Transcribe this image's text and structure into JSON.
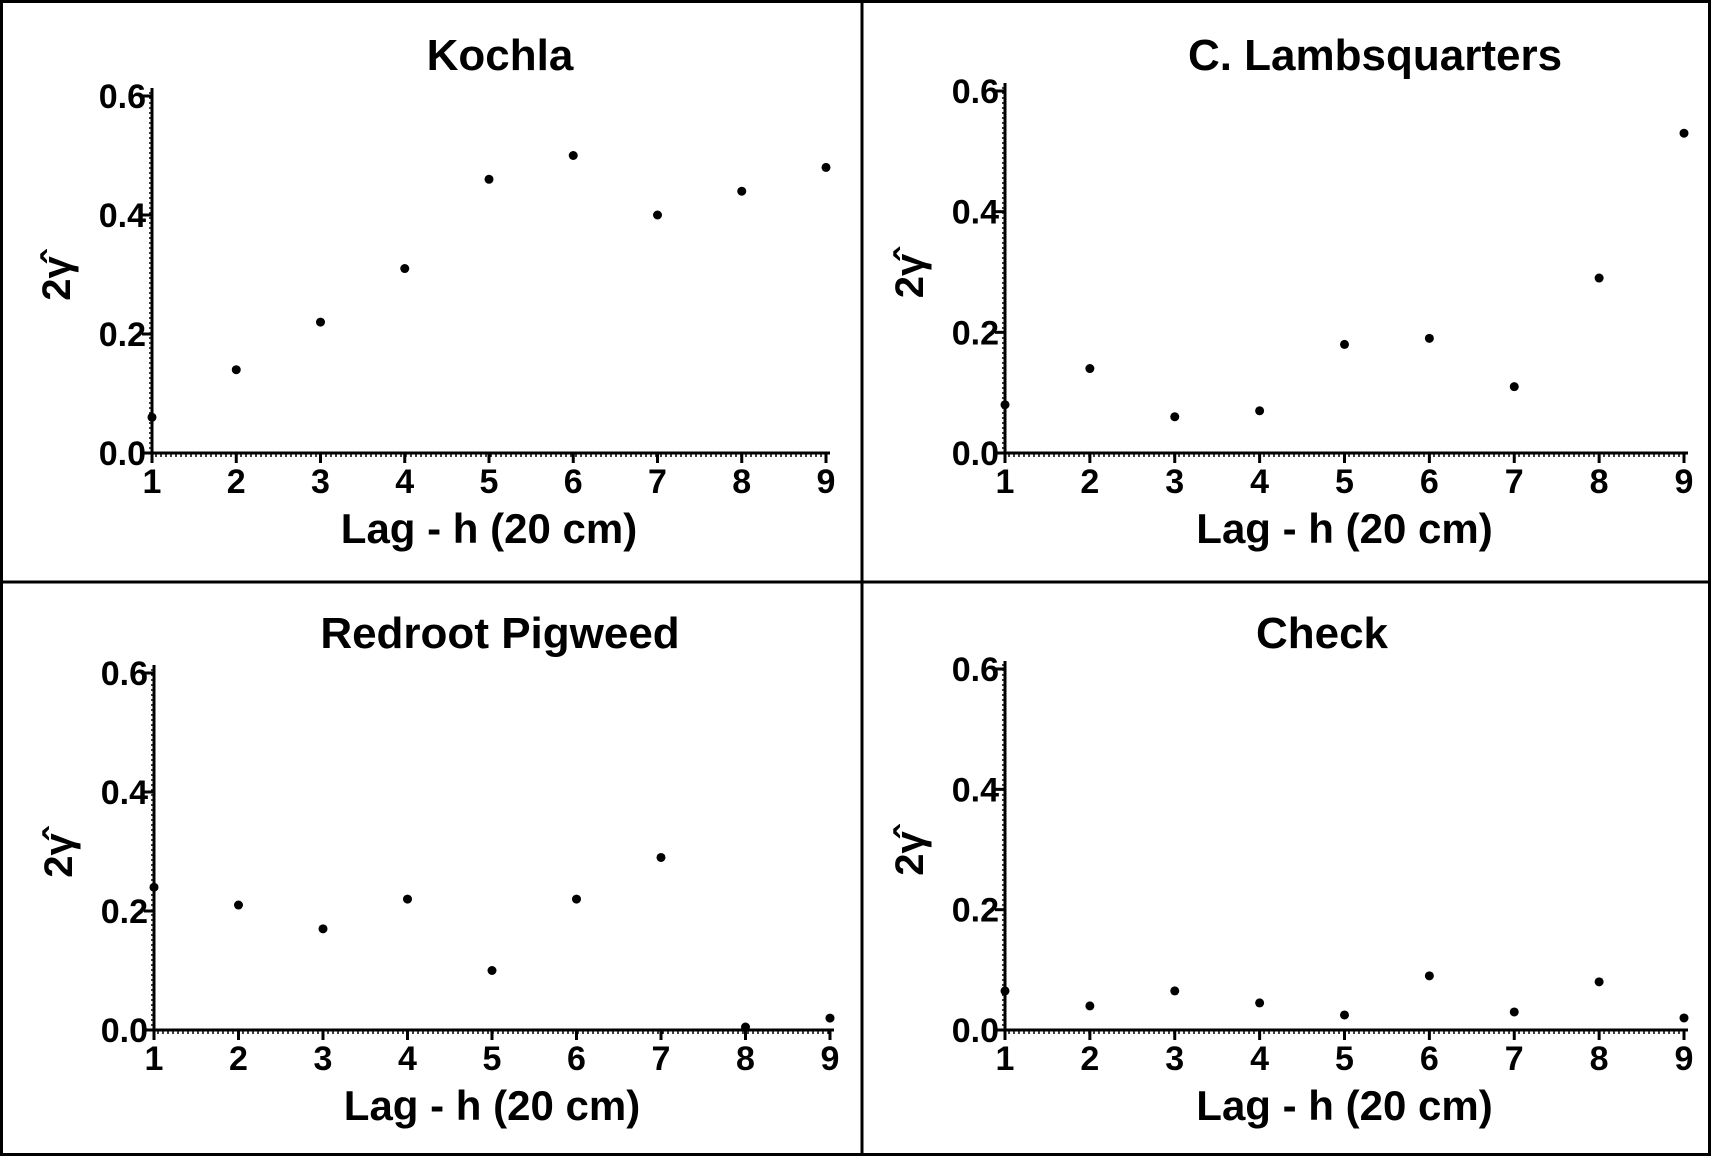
{
  "chart_data": [
    {
      "type": "scatter",
      "title": "Kochla",
      "xlabel": "Lag - h (20 cm)",
      "ylabel": "2γ̂",
      "x": [
        1,
        2,
        3,
        4,
        5,
        6,
        7,
        8,
        9
      ],
      "y": [
        0.06,
        0.14,
        0.22,
        0.31,
        0.46,
        0.5,
        0.4,
        0.44,
        0.48
      ],
      "xticks": [
        "1",
        "2",
        "3",
        "4",
        "5",
        "6",
        "7",
        "8",
        "9"
      ],
      "yticks": [
        "0.0",
        "0.2",
        "0.4",
        "0.6"
      ],
      "xlim": [
        1,
        9
      ],
      "ylim": [
        0,
        0.6
      ],
      "grid": false
    },
    {
      "type": "scatter",
      "title": "C. Lambsquarters",
      "xlabel": "Lag - h (20 cm)",
      "ylabel": "2γ̂",
      "x": [
        1,
        2,
        3,
        4,
        5,
        6,
        7,
        8,
        9
      ],
      "y": [
        0.08,
        0.14,
        0.06,
        0.07,
        0.18,
        0.19,
        0.11,
        0.29,
        0.53
      ],
      "xticks": [
        "1",
        "2",
        "3",
        "4",
        "5",
        "6",
        "7",
        "8",
        "9"
      ],
      "yticks": [
        "0.0",
        "0.2",
        "0.4",
        "0.6"
      ],
      "xlim": [
        1,
        9
      ],
      "ylim": [
        0,
        0.6
      ],
      "grid": false
    },
    {
      "type": "scatter",
      "title": "Redroot Pigweed",
      "xlabel": "Lag - h (20 cm)",
      "ylabel": "2γ̂",
      "x": [
        1,
        2,
        3,
        4,
        5,
        6,
        7,
        8,
        9
      ],
      "y": [
        0.24,
        0.21,
        0.17,
        0.22,
        0.1,
        0.22,
        0.29,
        0.005,
        0.02
      ],
      "xticks": [
        "1",
        "2",
        "3",
        "4",
        "5",
        "6",
        "7",
        "8",
        "9"
      ],
      "yticks": [
        "0.0",
        "0.2",
        "0.4",
        "0.6"
      ],
      "xlim": [
        1,
        9
      ],
      "ylim": [
        0,
        0.6
      ],
      "grid": false
    },
    {
      "type": "scatter",
      "title": "Check",
      "xlabel": "Lag - h (20 cm)",
      "ylabel": "2γ̂",
      "x": [
        1,
        2,
        3,
        4,
        5,
        6,
        7,
        8,
        9
      ],
      "y": [
        0.065,
        0.04,
        0.065,
        0.045,
        0.025,
        0.09,
        0.03,
        0.08,
        0.02
      ],
      "xticks": [
        "1",
        "2",
        "3",
        "4",
        "5",
        "6",
        "7",
        "8",
        "9"
      ],
      "yticks": [
        "0.0",
        "0.2",
        "0.4",
        "0.6"
      ],
      "xlim": [
        1,
        9
      ],
      "ylim": [
        0,
        0.6
      ],
      "grid": false
    }
  ]
}
